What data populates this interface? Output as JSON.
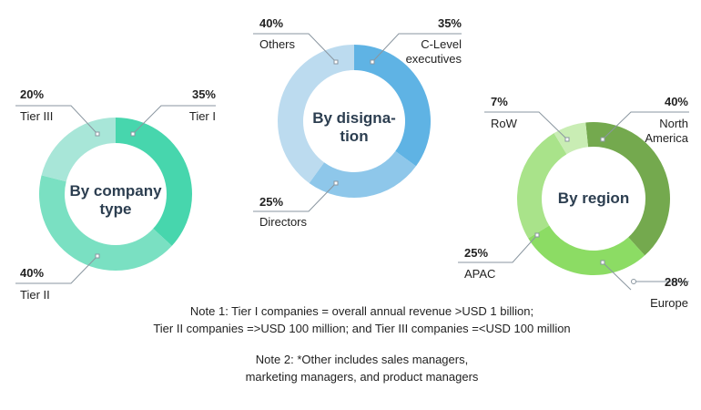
{
  "chart_data": [
    {
      "type": "pie",
      "title": "By company type",
      "categories": [
        "Tier I",
        "Tier II",
        "Tier III"
      ],
      "values": [
        35,
        40,
        20
      ],
      "labels": [
        "35%",
        "40%",
        "20%"
      ],
      "colors": [
        "#47d6ad",
        "#7ae0c2",
        "#a8e6d8"
      ],
      "donut": true
    },
    {
      "type": "pie",
      "title": "By disignation",
      "title_lines": [
        "By disigna-",
        "tion"
      ],
      "categories": [
        "C-Level executives",
        "Directors",
        "Others"
      ],
      "category_lines": [
        [
          "C-Level",
          "executives"
        ],
        [
          "Directors"
        ],
        [
          "Others"
        ]
      ],
      "values": [
        35,
        25,
        40
      ],
      "labels": [
        "35%",
        "25%",
        "40%"
      ],
      "colors": [
        "#5fb3e4",
        "#8ec7ea",
        "#bcdbef"
      ],
      "donut": true
    },
    {
      "type": "pie",
      "title": "By region",
      "categories": [
        "North America",
        "Europe",
        "APAC",
        "RoW"
      ],
      "category_lines": [
        [
          "North",
          "America"
        ],
        [
          "Europe"
        ],
        [
          "APAC"
        ],
        [
          "RoW"
        ]
      ],
      "values": [
        40,
        28,
        25,
        7
      ],
      "labels": [
        "40%",
        "28%",
        "25%",
        "7%"
      ],
      "colors": [
        "#74a94e",
        "#8cdc64",
        "#a9e38a",
        "#c9edb4"
      ],
      "donut": true
    }
  ],
  "notes": {
    "note1_line1": "Note 1: Tier I companies = overall annual revenue >USD 1 billion;",
    "note1_line2": "Tier II companies =>USD 100 million; and Tier III companies =<USD 100 million",
    "note2_line1": "Note 2: *Other includes sales managers,",
    "note2_line2": "marketing managers, and product managers"
  }
}
